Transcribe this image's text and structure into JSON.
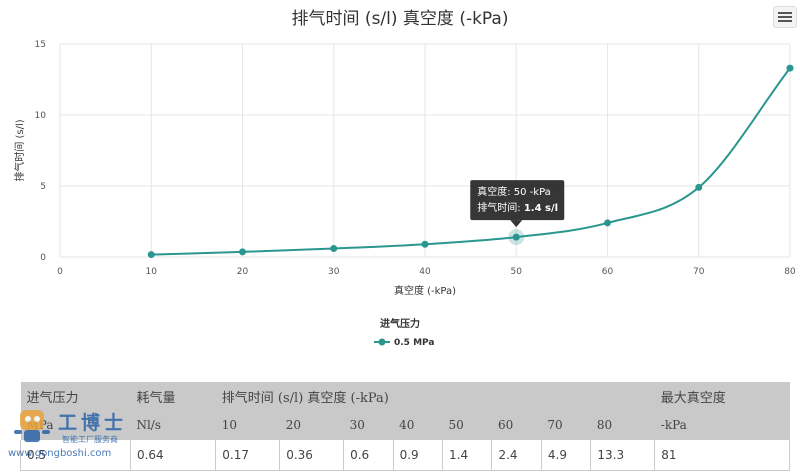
{
  "chart": {
    "title": "排气时间 (s/l) 真空度 (-kPa)",
    "menu_icon": "hamburger-menu-icon"
  },
  "chart_data": {
    "type": "line",
    "title": "排气时间 (s/l) 真空度 (-kPa)",
    "xlabel": "真空度 (-kPa)",
    "ylabel": "排气时间 (s/l)",
    "xlim": [
      0,
      80
    ],
    "ylim": [
      0,
      15
    ],
    "x_ticks": [
      0,
      10,
      20,
      30,
      40,
      50,
      60,
      70,
      80
    ],
    "y_ticks": [
      0,
      5,
      10,
      15
    ],
    "grid": true,
    "legend": {
      "title": "进气压力",
      "placement": "bottom-center"
    },
    "series": [
      {
        "name": "0.5 MPa",
        "color": "#2a9690",
        "x": [
          10,
          20,
          30,
          40,
          50,
          60,
          70,
          80
        ],
        "y": [
          0.17,
          0.36,
          0.6,
          0.9,
          1.4,
          2.4,
          4.9,
          13.3
        ]
      }
    ],
    "tooltip": {
      "line1": "真空度: 50 -kPa",
      "line2_label": "排气时间: ",
      "line2_value": "1.4 s/l",
      "point_index": 4
    }
  },
  "table": {
    "h1": [
      "进气压力",
      "耗气量",
      "排气时间 (s/l) 真空度 (-kPa)",
      "最大真空度"
    ],
    "h2": [
      "MPa",
      "Nl/s",
      "10",
      "20",
      "30",
      "40",
      "50",
      "60",
      "70",
      "80",
      "-kPa"
    ],
    "rows": [
      [
        "0.5",
        "0.64",
        "0.17",
        "0.36",
        "0.6",
        "0.9",
        "1.4",
        "2.4",
        "4.9",
        "13.3",
        "81"
      ]
    ]
  },
  "watermark": {
    "brand": "工博士",
    "sub": "智能工厂服务商",
    "url": "www.gongboshi.com"
  }
}
